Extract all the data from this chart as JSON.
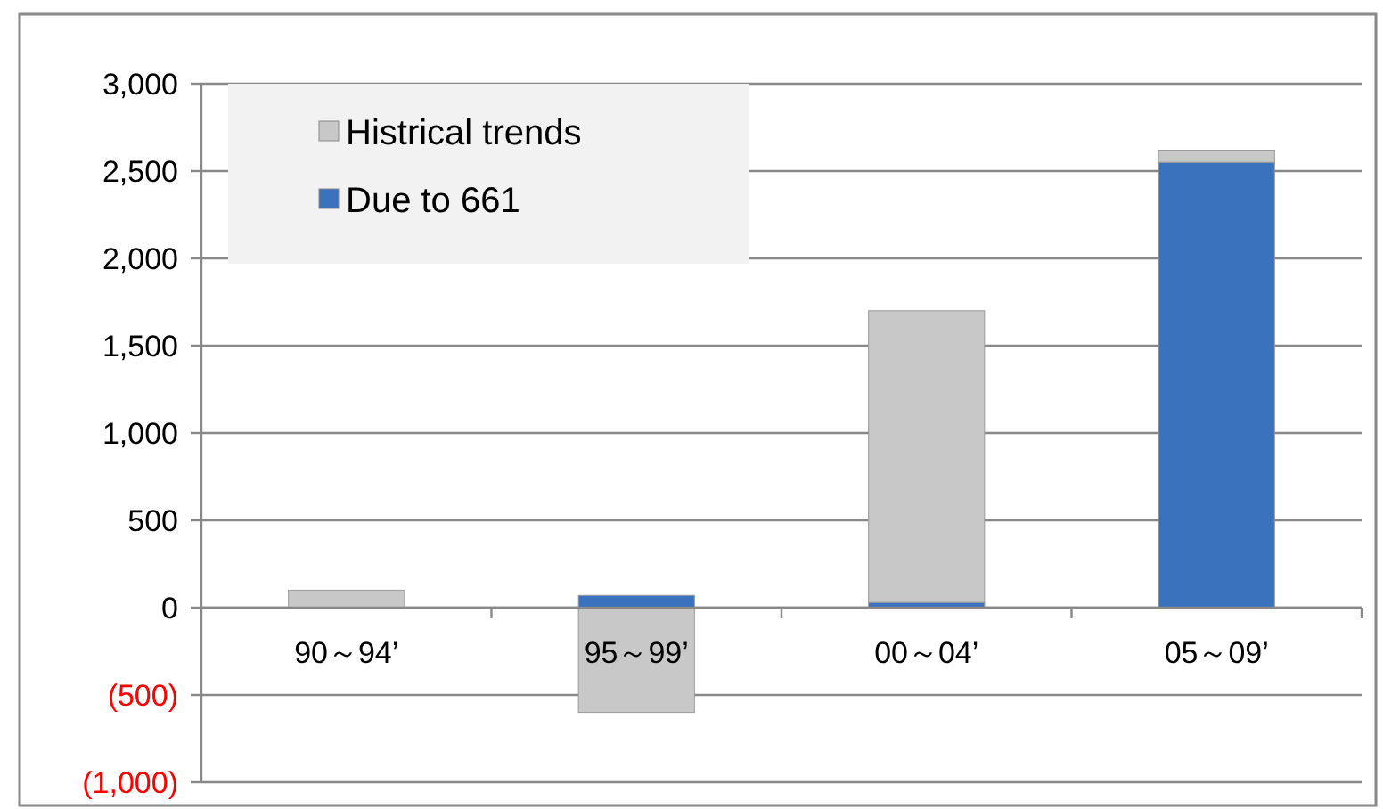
{
  "chart_data": {
    "type": "bar",
    "stacked": true,
    "categories": [
      "90～94’",
      "95～99’",
      "00～04’",
      "05～09’"
    ],
    "series": [
      {
        "name": "Due to 661",
        "color": "#3a72be",
        "values": [
          0,
          70,
          30,
          2550
        ]
      },
      {
        "name": "Histrical trends",
        "color": "#c8c8c8",
        "values": [
          100,
          -600,
          1670,
          70
        ]
      }
    ],
    "ylim": [
      -1000,
      3000
    ],
    "yticks": [
      {
        "value": -1000,
        "label": "(1,000)"
      },
      {
        "value": -500,
        "label": "(500)"
      },
      0,
      {
        "value": 500,
        "label": "500"
      },
      {
        "value": 1000,
        "label": "1,000"
      },
      {
        "value": 1500,
        "label": "1,500"
      },
      {
        "value": 2000,
        "label": "2,000"
      },
      {
        "value": 2500,
        "label": "2,500"
      },
      {
        "value": 3000,
        "label": "3,000"
      }
    ],
    "grid": "y",
    "legend": "top left"
  }
}
